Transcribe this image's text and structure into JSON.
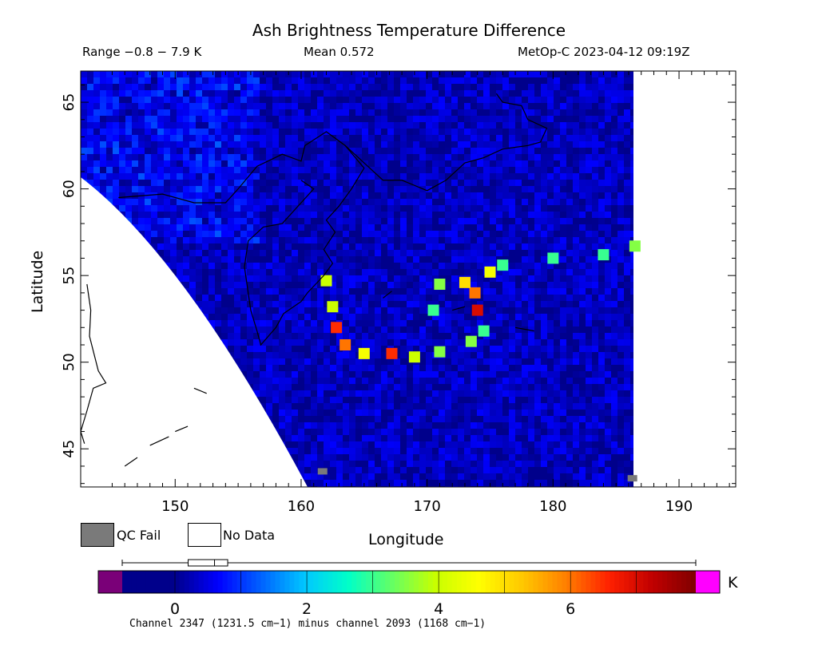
{
  "header": {
    "title": "Ash Brightness Temperature Difference",
    "range": "Range −0.8 − 7.9 K",
    "mean": "Mean 0.572",
    "satellite": "MetOp-C 2023-04-12 09:19Z"
  },
  "legend": {
    "qc_fail": "QC Fail",
    "no_data": "No Data",
    "qc_color": "#7a7a7a",
    "no_data_color": "#ffffff"
  },
  "colorbar": {
    "units": "K",
    "caption": "Channel 2347 (1231.5 cm−1) minus channel 2093 (1168 cm−1)",
    "min": -0.8,
    "max": 7.9,
    "ticks": [
      0,
      2,
      4,
      6
    ],
    "tick_labels": [
      "0",
      "2",
      "4",
      "6"
    ],
    "under_color": "#7a0078",
    "over_color": "#ff00ff",
    "colors": [
      "#00008b",
      "#0000ff",
      "#0064ff",
      "#00c8ff",
      "#00ffc8",
      "#64ff64",
      "#c8ff00",
      "#ffff00",
      "#ffc800",
      "#ff8000",
      "#ff2000",
      "#c00000",
      "#7f0000"
    ],
    "boxplot": {
      "whisker_low": -0.8,
      "q1": 0.2,
      "median": 0.6,
      "q3": 0.8,
      "whisker_high": 7.9
    }
  },
  "chart_data": {
    "type": "heatmap",
    "title": "Ash Brightness Temperature Difference",
    "xlabel": "Longitude",
    "ylabel": "Latitude",
    "xlim": [
      142.5,
      194.5
    ],
    "ylim": [
      42.8,
      66.8
    ],
    "x_ticks": [
      150,
      160,
      170,
      180,
      190
    ],
    "y_ticks": [
      45,
      50,
      55,
      60,
      65
    ],
    "x_tick_labels": [
      "150",
      "160",
      "170",
      "180",
      "190"
    ],
    "y_tick_labels": [
      "45",
      "50",
      "55",
      "60",
      "65"
    ],
    "grid": false,
    "colorbar_range": [
      -0.8,
      7.9
    ],
    "units": "K",
    "ash_plume_path": [
      {
        "lon": 162.0,
        "lat": 54.7,
        "value": 4.0
      },
      {
        "lon": 162.5,
        "lat": 53.2,
        "value": 4.0
      },
      {
        "lon": 162.8,
        "lat": 52.0,
        "value": 6.5
      },
      {
        "lon": 163.5,
        "lat": 51.0,
        "value": 6.0
      },
      {
        "lon": 165.0,
        "lat": 50.5,
        "value": 4.5
      },
      {
        "lon": 167.2,
        "lat": 50.5,
        "value": 6.5
      },
      {
        "lon": 169.0,
        "lat": 50.3,
        "value": 4.0
      },
      {
        "lon": 171.0,
        "lat": 50.6,
        "value": 3.5
      },
      {
        "lon": 173.5,
        "lat": 51.2,
        "value": 3.5
      },
      {
        "lon": 174.5,
        "lat": 51.8,
        "value": 3.0
      },
      {
        "lon": 174.0,
        "lat": 53.0,
        "value": 7.0
      },
      {
        "lon": 173.8,
        "lat": 54.0,
        "value": 6.0
      },
      {
        "lon": 173.0,
        "lat": 54.6,
        "value": 5.0
      },
      {
        "lon": 175.0,
        "lat": 55.2,
        "value": 4.5
      },
      {
        "lon": 171.0,
        "lat": 54.5,
        "value": 3.5
      },
      {
        "lon": 170.5,
        "lat": 53.0,
        "value": 3.0
      },
      {
        "lon": 176.0,
        "lat": 55.6,
        "value": 3.0
      },
      {
        "lon": 180.0,
        "lat": 56.0,
        "value": 3.0
      },
      {
        "lon": 184.0,
        "lat": 56.2,
        "value": 3.0
      },
      {
        "lon": 186.5,
        "lat": 56.7,
        "value": 3.5
      }
    ],
    "background_value": 0.3,
    "qc_fail_points": [
      {
        "lon": 161.7,
        "lat": 43.7
      },
      {
        "lon": 186.3,
        "lat": 43.3
      }
    ]
  }
}
